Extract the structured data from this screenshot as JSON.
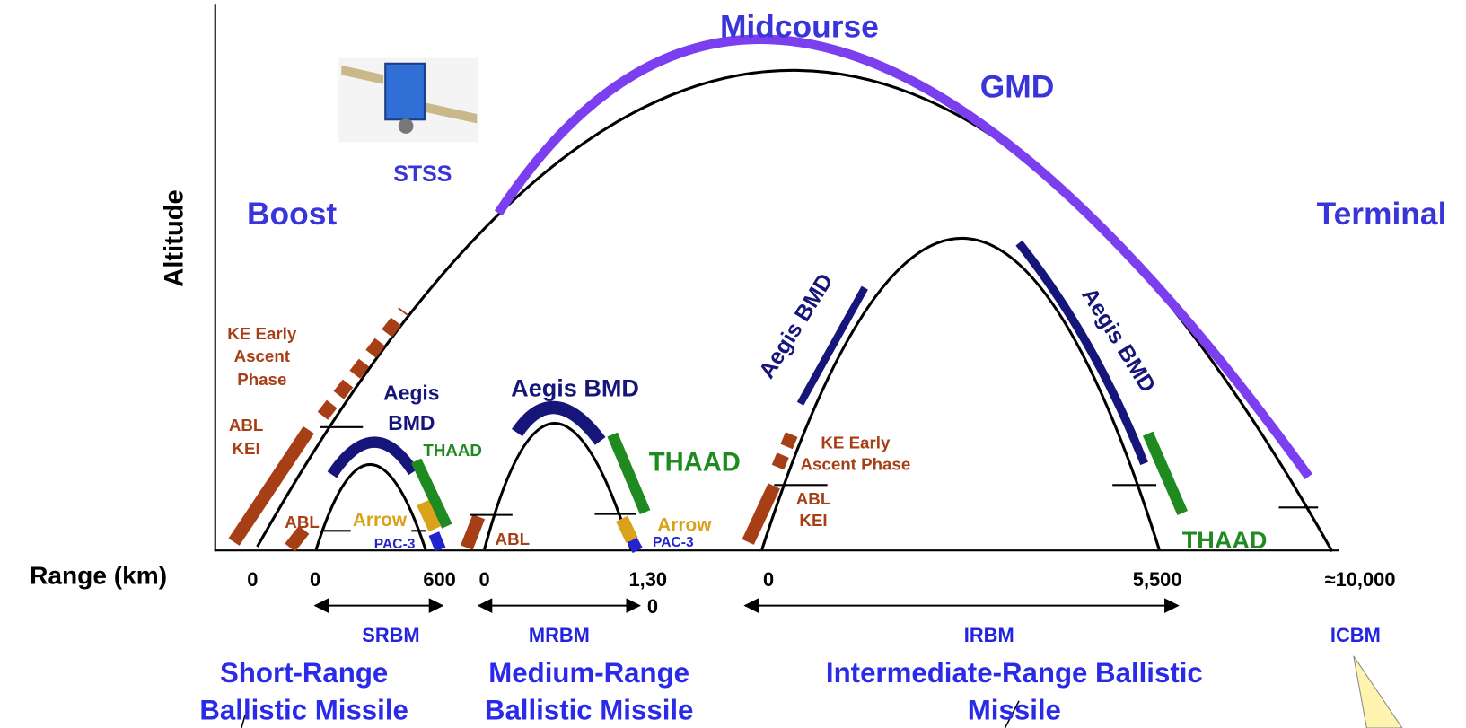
{
  "phases": {
    "midcourse": "Midcourse",
    "gmd": "GMD",
    "boost": "Boost",
    "terminal": "Terminal",
    "stss": "STSS"
  },
  "axes": {
    "y_label": "Altitude",
    "x_label": "Range (km)"
  },
  "range_labels": [
    "0",
    "0",
    "600",
    "0",
    "1,30",
    "0",
    "0",
    "5,500",
    "≈10,000"
  ],
  "classes": {
    "srbm": {
      "abbr": "SRBM",
      "name": [
        "Short-Range",
        "Ballistic Missile"
      ]
    },
    "mrbm": {
      "abbr": "MRBM",
      "name": [
        "Medium-Range",
        "Ballistic Missile"
      ]
    },
    "irbm": {
      "abbr": "IRBM",
      "name": [
        "Intermediate-Range Ballistic",
        "Missile"
      ]
    },
    "icbm": {
      "abbr": "ICBM"
    }
  },
  "systems": {
    "srbm": {
      "ke": [
        "KE Early",
        "Ascent",
        "Phase"
      ],
      "abl_kei": [
        "ABL",
        "KEI"
      ],
      "abl": "ABL",
      "aegis": [
        "Aegis",
        "BMD"
      ],
      "thaad": "THAAD",
      "arrow": "Arrow",
      "pac3": "PAC-3"
    },
    "mrbm": {
      "abl": "ABL",
      "aegis": "Aegis BMD",
      "thaad": "THAAD",
      "arrow": "Arrow",
      "pac3": "PAC-3"
    },
    "irbm": {
      "ke": [
        "KE Early",
        "Ascent Phase"
      ],
      "abl_kei": [
        "ABL",
        "KEI"
      ],
      "aegis_up": "Aegis BMD",
      "aegis_down": "Aegis BMD",
      "thaad": "THAAD"
    }
  }
}
